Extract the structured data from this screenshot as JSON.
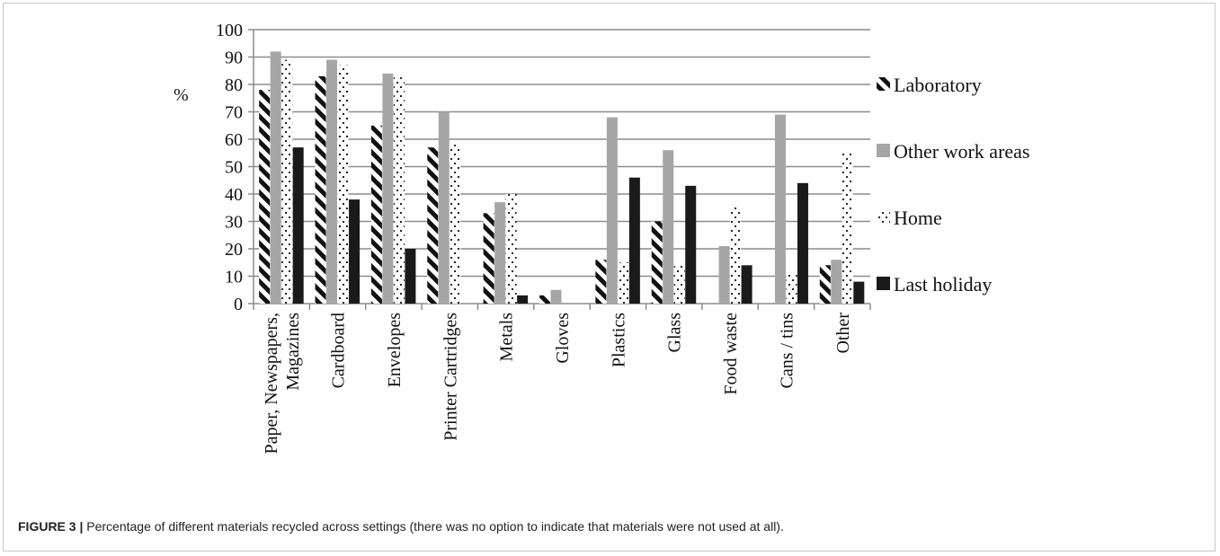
{
  "colors": {
    "laboratory": "#111111",
    "other_work_areas": "#a6a6a6",
    "home": "#222222",
    "last_holiday": "#1a1a1a",
    "gridline": "#8c8c8c"
  },
  "caption": {
    "lead": "FIGURE 3 |",
    "text": " Percentage of different materials recycled across settings (there was no option to indicate that materials were not used at all)."
  },
  "chart_data": {
    "type": "bar",
    "title": "",
    "ylabel": "%",
    "xlabel": "",
    "ylim": [
      0,
      100
    ],
    "yticks": [
      0,
      10,
      20,
      30,
      40,
      50,
      60,
      70,
      80,
      90,
      100
    ],
    "grid": true,
    "legend_position": "right",
    "categories": [
      [
        "Paper, Newspapers,",
        "Magazines"
      ],
      [
        "Cardboard"
      ],
      [
        "Envelopes"
      ],
      [
        "Printer Cartridges"
      ],
      [
        "Metals"
      ],
      [
        "Gloves"
      ],
      [
        "Plastics"
      ],
      [
        "Glass"
      ],
      [
        "Food waste"
      ],
      [
        "Cans / tins"
      ],
      [
        "Other"
      ]
    ],
    "series": [
      {
        "name": "Laboratory",
        "pattern": "diagonal",
        "values": [
          78,
          83,
          65,
          57,
          33,
          3,
          16,
          30,
          0,
          0,
          14
        ]
      },
      {
        "name": "Other work areas",
        "pattern": "solid-gray",
        "values": [
          92,
          89,
          84,
          70,
          37,
          5,
          68,
          56,
          21,
          69,
          16
        ]
      },
      {
        "name": "Home",
        "pattern": "dots",
        "values": [
          89,
          87,
          83,
          58,
          40,
          0,
          15,
          14,
          36,
          11,
          55
        ]
      },
      {
        "name": "Last holiday",
        "pattern": "solid-black",
        "values": [
          57,
          38,
          20,
          0,
          3,
          0,
          46,
          43,
          14,
          44,
          8
        ]
      }
    ]
  }
}
